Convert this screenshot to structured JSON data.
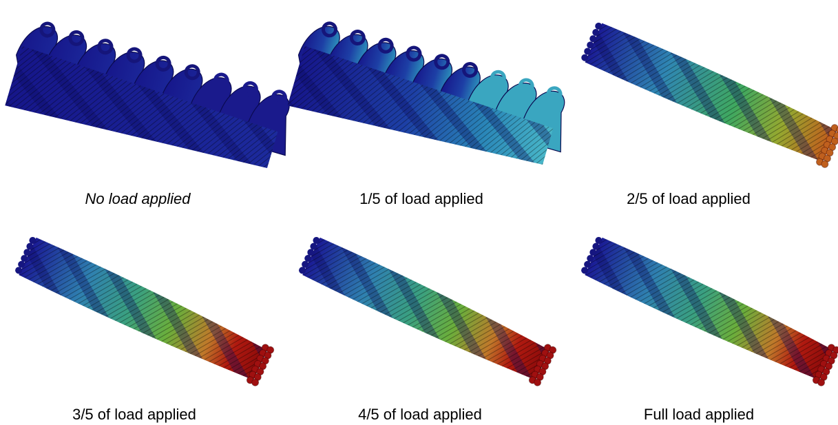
{
  "panels": [
    {
      "caption": "No load applied"
    },
    {
      "caption": "1/5 of load applied"
    },
    {
      "caption": "2/5 of load applied"
    },
    {
      "caption": "3/5 of load applied"
    },
    {
      "caption": "4/5 of load applied"
    },
    {
      "caption": "Full load applied"
    }
  ]
}
